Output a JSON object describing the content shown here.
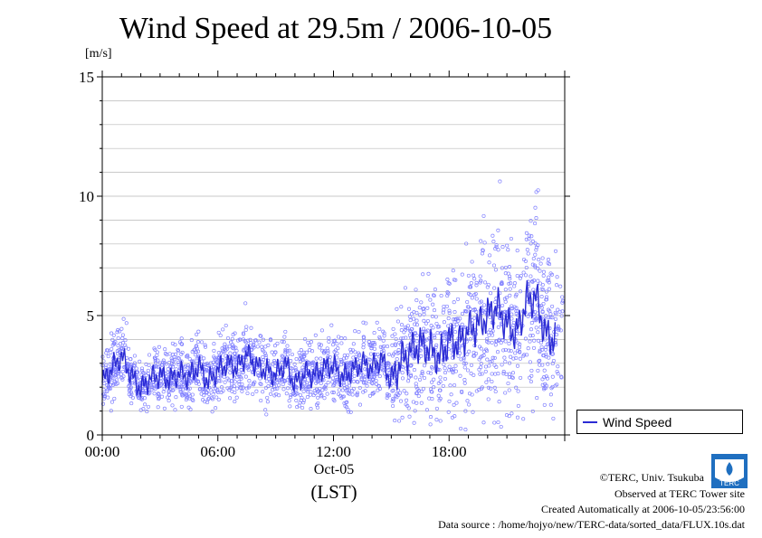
{
  "chart_data": {
    "type": "scatter",
    "title": "Wind Speed at 29.5m / 2006-10-05",
    "ylabel_unit": "[m/s]",
    "ylim": [
      0,
      15
    ],
    "yticks": [
      "0",
      "5",
      "10",
      "15"
    ],
    "xlim_hours": [
      0,
      24
    ],
    "xticks": [
      "00:00",
      "06:00",
      "12:00",
      "18:00"
    ],
    "x_date_label": "Oct-05",
    "x_tz_label": "(LST)",
    "grid": "horizontal",
    "legend_position": "right",
    "series": [
      {
        "name": "Wind Speed",
        "color": "#2b2bd4",
        "point_color": "#8080ff",
        "x_hours": [
          0,
          0.5,
          1,
          1.5,
          2,
          2.5,
          3,
          3.5,
          4,
          4.5,
          5,
          5.5,
          6,
          6.5,
          7,
          7.5,
          8,
          8.5,
          9,
          9.5,
          10,
          10.5,
          11,
          11.5,
          12,
          12.5,
          13,
          13.5,
          14,
          14.5,
          15,
          15.5,
          16,
          16.5,
          17,
          17.5,
          18,
          18.5,
          19,
          19.5,
          20,
          20.5,
          21,
          21.5,
          22,
          22.5,
          23,
          23.5
        ],
        "values": [
          2.2,
          2.8,
          3.3,
          2.5,
          1.9,
          2.4,
          2.5,
          2.3,
          2.6,
          2.4,
          2.9,
          2.2,
          2.7,
          3.0,
          2.8,
          3.4,
          2.9,
          2.7,
          2.5,
          3.0,
          2.1,
          2.6,
          2.5,
          2.8,
          2.9,
          2.4,
          2.7,
          3.0,
          2.8,
          3.2,
          2.2,
          3.1,
          3.5,
          3.8,
          3.6,
          3.2,
          4.0,
          3.8,
          4.4,
          4.6,
          5.0,
          5.4,
          4.6,
          4.2,
          5.6,
          5.8,
          4.2,
          4.0
        ]
      }
    ]
  },
  "legend": {
    "label": "Wind Speed"
  },
  "footer": {
    "line1": "©TERC, Univ. Tsukuba",
    "line2": "Observed at TERC Tower site",
    "line3": "Created Automatically at 2006-10-05/23:56:00",
    "line4": "Data source : /home/hojyo/new/TERC-data/sorted_data/FLUX.10s.dat"
  },
  "logo": {
    "text": "TERC"
  }
}
